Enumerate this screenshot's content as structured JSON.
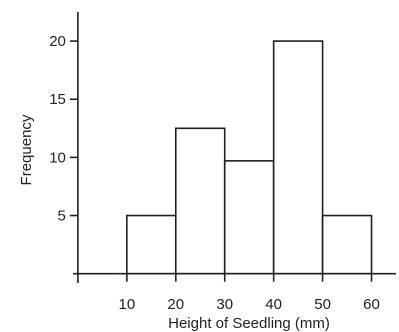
{
  "chart_data": {
    "type": "bar",
    "title": "",
    "xlabel": "Height of Seedling (mm)",
    "ylabel": "Frequency",
    "bins": [
      {
        "from": 10,
        "to": 20,
        "value": 5
      },
      {
        "from": 20,
        "to": 30,
        "value": 12.5
      },
      {
        "from": 30,
        "to": 40,
        "value": 9.7
      },
      {
        "from": 40,
        "to": 50,
        "value": 20
      },
      {
        "from": 50,
        "to": 60,
        "value": 5
      }
    ],
    "xticks": [
      10,
      20,
      30,
      40,
      50,
      60
    ],
    "yticks": [
      5,
      10,
      15,
      20
    ],
    "xlim": [
      -1,
      65
    ],
    "ylim": [
      -0.8,
      22.5
    ],
    "grid": false,
    "colors": {
      "bar_fill": "#ffffff",
      "stroke": "#231f20"
    }
  }
}
